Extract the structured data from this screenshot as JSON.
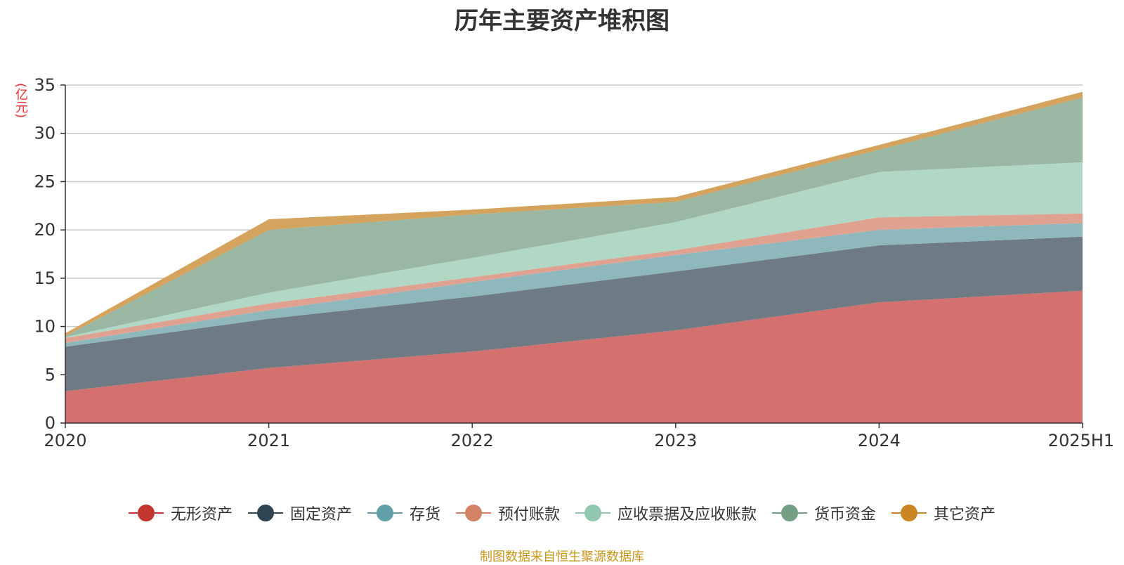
{
  "chart_data": {
    "type": "area",
    "stacked": true,
    "title": "历年主要资产堆积图",
    "ylabel": "(亿元)",
    "x": [
      "2020",
      "2021",
      "2022",
      "2023",
      "2024",
      "2025H1"
    ],
    "ylim": [
      0,
      35
    ],
    "yticks": [
      0,
      5,
      10,
      15,
      20,
      25,
      30,
      35
    ],
    "grid": true,
    "legend_position": "bottom",
    "series": [
      {
        "name": "无形资产",
        "color": "#c23531",
        "fill": "#d4706d",
        "values": [
          3.3,
          5.7,
          7.4,
          9.6,
          12.5,
          13.7
        ]
      },
      {
        "name": "固定资产",
        "color": "#2f4554",
        "fill": "#6e7b85",
        "values": [
          4.6,
          5.1,
          5.7,
          6.1,
          5.9,
          5.6
        ]
      },
      {
        "name": "存货",
        "color": "#61a0a8",
        "fill": "#8fb8bd",
        "values": [
          0.4,
          0.9,
          1.5,
          1.7,
          1.6,
          1.4
        ]
      },
      {
        "name": "预付账款",
        "color": "#d48265",
        "fill": "#dfa291",
        "values": [
          0.5,
          0.7,
          0.5,
          0.5,
          1.3,
          1.0
        ]
      },
      {
        "name": "应收票据及应收账款",
        "color": "#91c7ae",
        "fill": "#b0d8c5",
        "values": [
          0.1,
          1.1,
          2.0,
          2.9,
          4.7,
          5.3
        ]
      },
      {
        "name": "货币资金",
        "color": "#749f83",
        "fill": "#9ab7a4",
        "values": [
          0.1,
          6.5,
          4.5,
          2.1,
          2.3,
          6.7
        ]
      },
      {
        "name": "其它资产",
        "color": "#ca8622",
        "fill": "#d4a35e",
        "values": [
          0.3,
          1.1,
          0.5,
          0.5,
          0.5,
          0.6
        ]
      }
    ]
  },
  "source_note": "制图数据来自恒生聚源数据库"
}
